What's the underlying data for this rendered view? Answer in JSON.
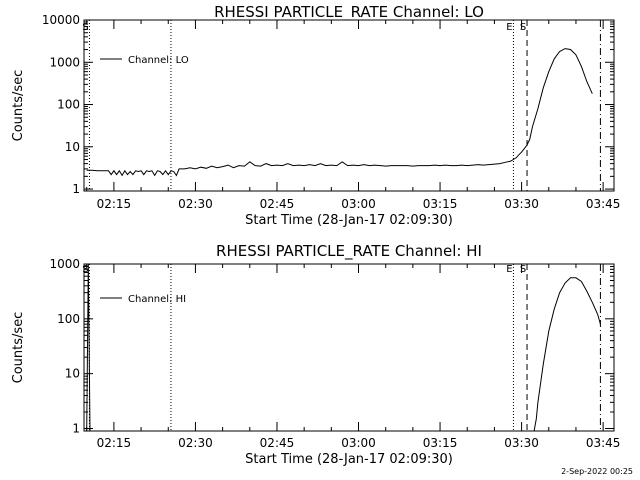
{
  "footer_date": "2-Sep-2022 00:25",
  "chart_data": [
    {
      "type": "line",
      "title": "RHESSI PARTICLE_RATE Channel: LO",
      "xlabel": "Start Time (28-Jan-17 02:09:30)",
      "ylabel": "Counts/sec",
      "yscale": "log",
      "ylim": [
        0.9,
        10000
      ],
      "yticks": [
        1,
        10,
        100,
        1000,
        10000
      ],
      "ytick_labels": [
        "1",
        "10",
        "100",
        "1000",
        "10000"
      ],
      "xlim_min": [
        9.5,
        107
      ],
      "xticks_min": [
        15,
        30,
        45,
        60,
        75,
        90,
        105
      ],
      "xtick_labels": [
        "02:15",
        "02:30",
        "02:45",
        "03:00",
        "03:15",
        "03:30",
        "03:45"
      ],
      "legend": "Channel: LO",
      "markers": [
        {
          "label": "S",
          "t_min": 10.5,
          "style": "dotted"
        },
        {
          "label": "",
          "t_min": 25.5,
          "style": "dotted"
        },
        {
          "label": "E",
          "t_min": 88.5,
          "style": "dotted"
        },
        {
          "label": "S",
          "t_min": 91.0,
          "style": "dashed"
        },
        {
          "label": "",
          "t_min": 104.5,
          "style": "dashdot"
        }
      ],
      "series": [
        {
          "name": "Channel: LO",
          "t_min": [
            10,
            11,
            12,
            13,
            14,
            14.5,
            15,
            15.5,
            16,
            16.5,
            17,
            17.5,
            18,
            18.5,
            19,
            19.5,
            20,
            20.5,
            21,
            21.5,
            22,
            22.5,
            23,
            23.5,
            24,
            24.5,
            25,
            25.5,
            26,
            26.5,
            27,
            28,
            29,
            30,
            31,
            32,
            33,
            34,
            35,
            36,
            37,
            38,
            39,
            40,
            41,
            42,
            43,
            44,
            45,
            46,
            47,
            48,
            49,
            50,
            51,
            52,
            53,
            54,
            55,
            56,
            57,
            58,
            59,
            60,
            61,
            62,
            63,
            64,
            65,
            66,
            67,
            68,
            69,
            70,
            71,
            72,
            73,
            74,
            75,
            76,
            77,
            78,
            79,
            80,
            81,
            82,
            83,
            84,
            85,
            86,
            87,
            88,
            88.5,
            89,
            89.5,
            90,
            90.5,
            91,
            91.5,
            92,
            93,
            94,
            95,
            96,
            97,
            98,
            99,
            100,
            101,
            102,
            103,
            104,
            104.5
          ],
          "values": [
            2.8,
            2.8,
            2.7,
            2.7,
            2.7,
            2.2,
            2.7,
            2.2,
            2.7,
            2.1,
            2.7,
            2.2,
            2.6,
            2.2,
            2.7,
            2.6,
            2.7,
            2.2,
            2.7,
            2.6,
            2.7,
            2.1,
            2.7,
            2.6,
            2.2,
            2.7,
            2.2,
            2.7,
            2.6,
            2.1,
            3.0,
            3.0,
            3.2,
            3.0,
            3.3,
            3.1,
            3.5,
            3.2,
            3.4,
            3.7,
            3.2,
            3.6,
            3.5,
            4.4,
            3.6,
            3.5,
            4.0,
            3.6,
            3.7,
            3.6,
            4.0,
            3.6,
            3.7,
            3.6,
            3.8,
            3.6,
            4.0,
            3.6,
            3.7,
            3.6,
            4.4,
            3.6,
            3.7,
            3.6,
            3.8,
            3.6,
            3.7,
            3.6,
            3.5,
            3.6,
            3.6,
            3.6,
            3.6,
            3.5,
            3.6,
            3.6,
            3.6,
            3.7,
            3.6,
            3.7,
            3.6,
            3.6,
            3.7,
            3.6,
            3.7,
            3.8,
            3.7,
            3.8,
            3.9,
            4.0,
            4.3,
            4.6,
            5.0,
            5.5,
            6.5,
            7.5,
            9.0,
            11.0,
            15.0,
            30,
            80,
            250,
            600,
            1200,
            1800,
            2100,
            2000,
            1500,
            800,
            350,
            180
          ]
        }
      ]
    },
    {
      "type": "line",
      "title": "RHESSI PARTICLE_RATE Channel: HI",
      "xlabel": "Start Time (28-Jan-17 02:09:30)",
      "ylabel": "Counts/sec",
      "yscale": "log",
      "ylim": [
        0.9,
        1000
      ],
      "yticks": [
        1,
        10,
        100,
        1000
      ],
      "ytick_labels": [
        "1",
        "10",
        "100",
        "1000"
      ],
      "xlim_min": [
        9.5,
        107
      ],
      "xticks_min": [
        15,
        30,
        45,
        60,
        75,
        90,
        105
      ],
      "xtick_labels": [
        "02:15",
        "02:30",
        "02:45",
        "03:00",
        "03:15",
        "03:30",
        "03:45"
      ],
      "legend": "Channel: HI",
      "markers": [
        {
          "label": "S",
          "t_min": 10.5,
          "style": "dotted"
        },
        {
          "label": "",
          "t_min": 25.5,
          "style": "dotted"
        },
        {
          "label": "E",
          "t_min": 88.5,
          "style": "dotted"
        },
        {
          "label": "S",
          "t_min": 91.0,
          "style": "dashed"
        },
        {
          "label": "",
          "t_min": 104.5,
          "style": "dashdot"
        }
      ],
      "series": [
        {
          "name": "Channel: HI",
          "t_min": [
            10,
            10.3,
            10.6,
            92.3,
            92.7,
            93,
            94,
            95,
            96,
            97,
            98,
            99,
            100,
            101,
            102,
            103,
            104,
            104.5
          ],
          "values": [
            0.9,
            1000,
            0.9,
            0.9,
            1.5,
            3,
            15,
            60,
            150,
            300,
            450,
            560,
            560,
            480,
            320,
            200,
            120,
            80
          ]
        }
      ]
    }
  ]
}
